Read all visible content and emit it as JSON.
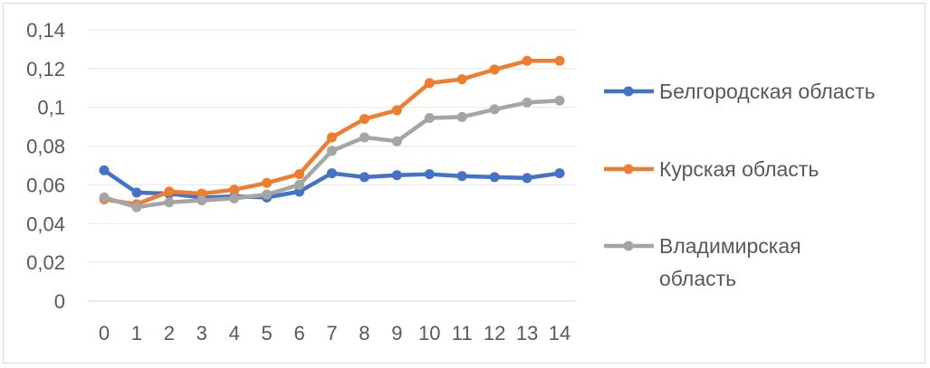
{
  "chart_data": {
    "type": "line",
    "title": "",
    "xlabel": "",
    "ylabel": "",
    "x": [
      0,
      1,
      2,
      3,
      4,
      5,
      6,
      7,
      8,
      9,
      10,
      11,
      12,
      13,
      14
    ],
    "x_tick_labels": [
      "0",
      "1",
      "2",
      "3",
      "4",
      "5",
      "6",
      "7",
      "8",
      "9",
      "10",
      "11",
      "12",
      "13",
      "14"
    ],
    "ylim": [
      0,
      0.14
    ],
    "y_ticks": [
      0,
      0.02,
      0.04,
      0.06,
      0.08,
      0.1,
      0.12,
      0.14
    ],
    "y_tick_labels": [
      "0",
      "0,02",
      "0,04",
      "0,06",
      "0,08",
      "0,1",
      "0,12",
      "0,14"
    ],
    "grid": true,
    "legend_position": "right",
    "series": [
      {
        "name": "Белгородская область",
        "legend_lines": [
          "Белгородская область"
        ],
        "color": "#4472C4",
        "values": [
          0.0675,
          0.056,
          0.0555,
          0.0535,
          0.054,
          0.0535,
          0.0565,
          0.066,
          0.064,
          0.065,
          0.0655,
          0.0645,
          0.064,
          0.0635,
          0.066
        ]
      },
      {
        "name": "Курская область",
        "legend_lines": [
          "Курская область"
        ],
        "color": "#ED7D31",
        "values": [
          0.0525,
          0.05,
          0.0565,
          0.0555,
          0.0575,
          0.061,
          0.0655,
          0.0845,
          0.094,
          0.0985,
          0.1125,
          0.1145,
          0.1195,
          0.124,
          0.124
        ]
      },
      {
        "name": "Владимирская область",
        "legend_lines": [
          "Владимирская",
          "область"
        ],
        "color": "#A5A5A5",
        "values": [
          0.0535,
          0.0485,
          0.051,
          0.052,
          0.053,
          0.055,
          0.06,
          0.0775,
          0.0845,
          0.0825,
          0.0945,
          0.095,
          0.099,
          0.1025,
          0.1035
        ]
      }
    ]
  }
}
